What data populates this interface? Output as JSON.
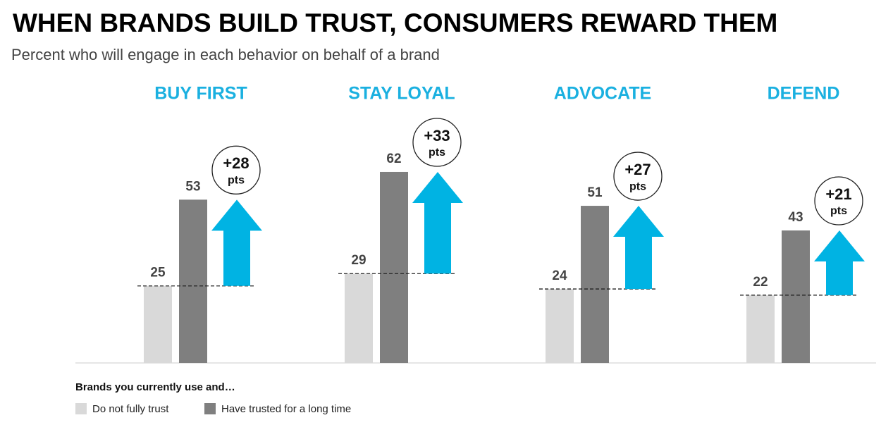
{
  "chart_data": {
    "type": "bar",
    "title": "WHEN BRANDS BUILD TRUST, CONSUMERS REWARD THEM",
    "subtitle": "Percent who will engage in each behavior on behalf of a brand",
    "categories": [
      "BUY FIRST",
      "STAY LOYAL",
      "ADVOCATE",
      "DEFEND"
    ],
    "series": [
      {
        "name": "Do not fully trust",
        "color": "#d9d9d9",
        "values": [
          25,
          29,
          24,
          22
        ]
      },
      {
        "name": "Have trusted for a long time",
        "color": "#7f7f7f",
        "values": [
          53,
          62,
          51,
          43
        ]
      }
    ],
    "gains": [
      {
        "label": "+28",
        "unit": "pts"
      },
      {
        "label": "+33",
        "unit": "pts"
      },
      {
        "label": "+27",
        "unit": "pts"
      },
      {
        "label": "+21",
        "unit": "pts"
      }
    ],
    "arrow_color": "#00b3e3",
    "legend_title": "Brands you currently use and…",
    "ylim": [
      0,
      70
    ]
  }
}
